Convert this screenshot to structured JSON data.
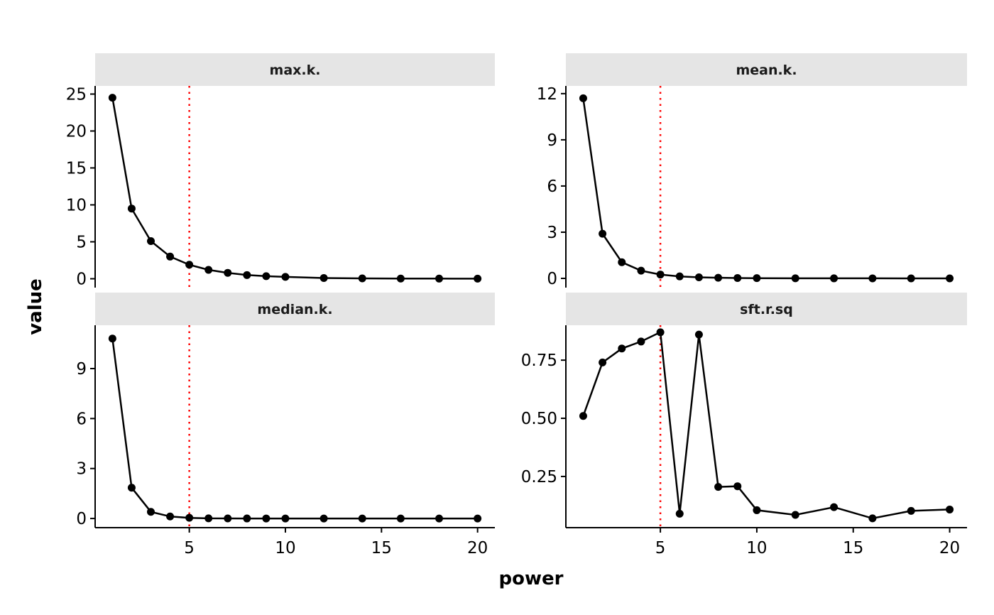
{
  "chart_data": {
    "type": "line",
    "xlabel": "power",
    "ylabel": "value",
    "x": [
      1,
      2,
      3,
      4,
      5,
      6,
      7,
      8,
      9,
      10,
      12,
      14,
      16,
      18,
      20
    ],
    "xlim": [
      0.1,
      20.9
    ],
    "x_ticks": [
      5,
      10,
      15,
      20
    ],
    "reference_line": {
      "x": 5,
      "color": "#ff0000",
      "style": "dotted"
    },
    "panels": [
      {
        "title": "max.k.",
        "values": [
          24.5,
          9.5,
          5.1,
          3.0,
          1.9,
          1.2,
          0.8,
          0.5,
          0.35,
          0.25,
          0.1,
          0.05,
          0.03,
          0.02,
          0.01
        ],
        "ylim": [
          -1.2,
          26.1
        ],
        "y_ticks": [
          0,
          5,
          10,
          15,
          20,
          25
        ]
      },
      {
        "title": "mean.k.",
        "values": [
          11.7,
          2.9,
          1.05,
          0.5,
          0.25,
          0.13,
          0.07,
          0.04,
          0.025,
          0.015,
          0.006,
          0.003,
          0.002,
          0.001,
          0.0005
        ],
        "ylim": [
          -0.6,
          12.5
        ],
        "y_ticks": [
          0,
          3,
          6,
          9,
          12
        ]
      },
      {
        "title": "median.k.",
        "values": [
          10.8,
          1.85,
          0.4,
          0.12,
          0.04,
          0.01,
          0.005,
          0.002,
          0.001,
          0.0005,
          0.0002,
          0.0001,
          0.0,
          0.0,
          0.0
        ],
        "ylim": [
          -0.55,
          11.6
        ],
        "y_ticks": [
          0,
          3,
          6,
          9
        ]
      },
      {
        "title": "sft.r.sq",
        "values": [
          0.51,
          0.74,
          0.8,
          0.83,
          0.87,
          0.09,
          0.86,
          0.205,
          0.208,
          0.105,
          0.085,
          0.118,
          0.07,
          0.102,
          0.108
        ],
        "ylim": [
          0.03,
          0.9
        ],
        "y_ticks": [
          0.25,
          0.5,
          0.75
        ],
        "y_tick_labels": [
          "0.25",
          "0.50",
          "0.75"
        ]
      }
    ],
    "colors": {
      "line": "#000000",
      "point": "#000000",
      "strip_bg": "#e5e5e5",
      "reference": "#ff0000"
    }
  }
}
